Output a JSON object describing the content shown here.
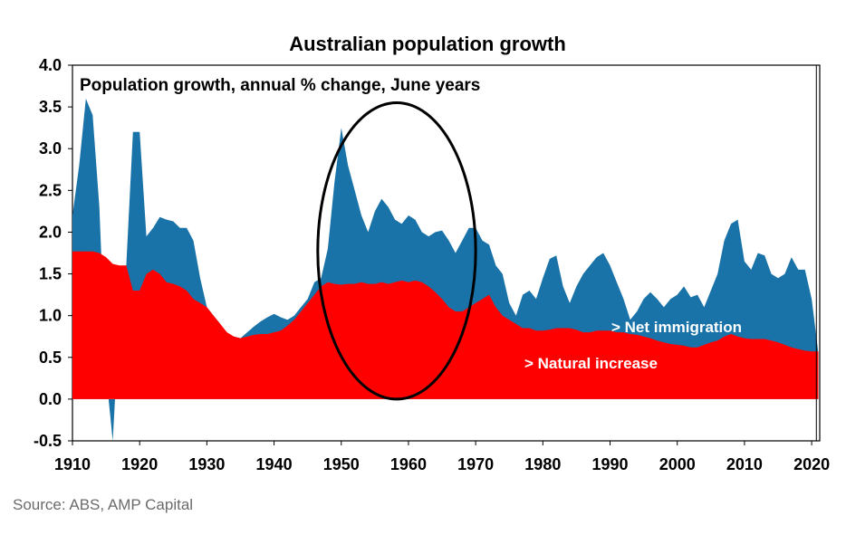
{
  "source_note": "Source: ABS, AMP Capital",
  "chart_data": {
    "type": "area",
    "title": "Australian population growth",
    "subtitle": "Population growth, annual % change, June years",
    "xlabel": "",
    "ylabel": "",
    "xlim": [
      1910,
      2022
    ],
    "ylim": [
      -0.5,
      4.0
    ],
    "y_ticks": [
      "4.0",
      "3.5",
      "3.0",
      "2.5",
      "2.0",
      "1.5",
      "1.0",
      "0.5",
      "0.0",
      "-0.5"
    ],
    "x_ticks": [
      "1910",
      "1920",
      "1930",
      "1940",
      "1950",
      "1960",
      "1970",
      "1980",
      "1990",
      "2000",
      "2010",
      "2020"
    ],
    "grid": false,
    "colors": {
      "net_immigration": "#1a73a8",
      "natural_increase": "#ff0000",
      "highlight_ellipse": "#000000"
    },
    "series": [
      {
        "name": "Net immigration",
        "label": "> Net immigration",
        "role": "total",
        "x": [
          1910,
          1911,
          1912,
          1913,
          1914,
          1915,
          1916,
          1917,
          1918,
          1919,
          1920,
          1921,
          1922,
          1923,
          1924,
          1925,
          1926,
          1927,
          1928,
          1929,
          1930,
          1931,
          1932,
          1933,
          1934,
          1935,
          1936,
          1937,
          1938,
          1939,
          1940,
          1941,
          1942,
          1943,
          1944,
          1945,
          1946,
          1947,
          1948,
          1949,
          1950,
          1951,
          1952,
          1953,
          1954,
          1955,
          1956,
          1957,
          1958,
          1959,
          1960,
          1961,
          1962,
          1963,
          1964,
          1965,
          1966,
          1967,
          1968,
          1969,
          1970,
          1971,
          1972,
          1973,
          1974,
          1975,
          1976,
          1977,
          1978,
          1979,
          1980,
          1981,
          1982,
          1983,
          1984,
          1985,
          1986,
          1987,
          1988,
          1989,
          1990,
          1991,
          1992,
          1993,
          1994,
          1995,
          1996,
          1997,
          1998,
          1999,
          2000,
          2001,
          2002,
          2003,
          2004,
          2005,
          2006,
          2007,
          2008,
          2009,
          2010,
          2011,
          2012,
          2013,
          2014,
          2015,
          2016,
          2017,
          2018,
          2019,
          2020,
          2021
        ],
        "values": [
          2.2,
          2.8,
          3.6,
          3.4,
          2.3,
          0.3,
          -0.5,
          1.0,
          1.6,
          3.2,
          3.2,
          1.95,
          2.05,
          2.18,
          2.15,
          2.13,
          2.05,
          2.05,
          1.9,
          1.45,
          1.1,
          1.0,
          0.9,
          0.78,
          0.75,
          0.73,
          0.8,
          0.87,
          0.93,
          0.98,
          1.02,
          0.98,
          0.95,
          1.0,
          1.1,
          1.2,
          1.4,
          1.45,
          1.8,
          2.6,
          3.25,
          2.8,
          2.5,
          2.2,
          2.0,
          2.25,
          2.4,
          2.3,
          2.15,
          2.1,
          2.2,
          2.15,
          2.0,
          1.95,
          2.0,
          2.02,
          1.9,
          1.75,
          1.9,
          2.05,
          2.05,
          1.9,
          1.85,
          1.6,
          1.5,
          1.15,
          1.0,
          1.25,
          1.3,
          1.2,
          1.45,
          1.68,
          1.72,
          1.35,
          1.15,
          1.35,
          1.5,
          1.6,
          1.7,
          1.75,
          1.6,
          1.4,
          1.2,
          0.95,
          1.05,
          1.2,
          1.28,
          1.2,
          1.1,
          1.2,
          1.25,
          1.35,
          1.22,
          1.25,
          1.1,
          1.3,
          1.5,
          1.9,
          2.1,
          2.15,
          1.65,
          1.55,
          1.75,
          1.72,
          1.5,
          1.45,
          1.5,
          1.7,
          1.55,
          1.55,
          1.2,
          0.55
        ]
      },
      {
        "name": "Natural increase",
        "label": "> Natural increase",
        "role": "base",
        "x": [
          1910,
          1911,
          1912,
          1913,
          1914,
          1915,
          1916,
          1917,
          1918,
          1919,
          1920,
          1921,
          1922,
          1923,
          1924,
          1925,
          1926,
          1927,
          1928,
          1929,
          1930,
          1931,
          1932,
          1933,
          1934,
          1935,
          1936,
          1937,
          1938,
          1939,
          1940,
          1941,
          1942,
          1943,
          1944,
          1945,
          1946,
          1947,
          1948,
          1949,
          1950,
          1951,
          1952,
          1953,
          1954,
          1955,
          1956,
          1957,
          1958,
          1959,
          1960,
          1961,
          1962,
          1963,
          1964,
          1965,
          1966,
          1967,
          1968,
          1969,
          1970,
          1971,
          1972,
          1973,
          1974,
          1975,
          1976,
          1977,
          1978,
          1979,
          1980,
          1981,
          1982,
          1983,
          1984,
          1985,
          1986,
          1987,
          1988,
          1989,
          1990,
          1991,
          1992,
          1993,
          1994,
          1995,
          1996,
          1997,
          1998,
          1999,
          2000,
          2001,
          2002,
          2003,
          2004,
          2005,
          2006,
          2007,
          2008,
          2009,
          2010,
          2011,
          2012,
          2013,
          2014,
          2015,
          2016,
          2017,
          2018,
          2019,
          2020,
          2021
        ],
        "values": [
          1.77,
          1.77,
          1.77,
          1.77,
          1.75,
          1.7,
          1.62,
          1.6,
          1.6,
          1.3,
          1.3,
          1.5,
          1.55,
          1.5,
          1.4,
          1.38,
          1.35,
          1.3,
          1.2,
          1.15,
          1.1,
          1.0,
          0.9,
          0.8,
          0.75,
          0.73,
          0.75,
          0.77,
          0.78,
          0.78,
          0.8,
          0.82,
          0.88,
          0.95,
          1.05,
          1.15,
          1.25,
          1.35,
          1.4,
          1.38,
          1.37,
          1.38,
          1.38,
          1.4,
          1.38,
          1.38,
          1.4,
          1.38,
          1.4,
          1.42,
          1.4,
          1.42,
          1.4,
          1.35,
          1.28,
          1.2,
          1.1,
          1.05,
          1.05,
          1.1,
          1.15,
          1.2,
          1.25,
          1.1,
          1.0,
          0.95,
          0.9,
          0.85,
          0.85,
          0.82,
          0.82,
          0.83,
          0.85,
          0.85,
          0.85,
          0.83,
          0.8,
          0.8,
          0.82,
          0.82,
          0.82,
          0.8,
          0.8,
          0.78,
          0.77,
          0.75,
          0.73,
          0.7,
          0.68,
          0.66,
          0.65,
          0.64,
          0.62,
          0.62,
          0.65,
          0.68,
          0.7,
          0.75,
          0.78,
          0.75,
          0.73,
          0.72,
          0.72,
          0.72,
          0.7,
          0.68,
          0.65,
          0.62,
          0.6,
          0.58,
          0.57,
          0.57
        ]
      }
    ],
    "annotations": [
      {
        "type": "ellipse",
        "label": "highlight",
        "x_range": [
          1946.5,
          1970
        ],
        "y_range": [
          0.0,
          3.55
        ]
      }
    ]
  }
}
